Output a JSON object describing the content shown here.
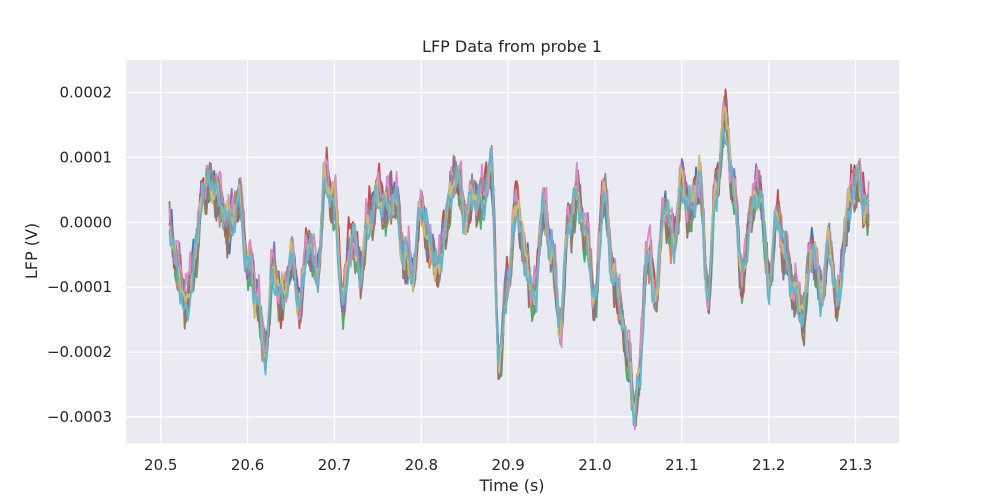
{
  "chart_data": {
    "type": "line",
    "title": "LFP Data from probe 1",
    "xlabel": "Time (s)",
    "ylabel": "LFP (V)",
    "xlim": [
      20.46,
      21.35
    ],
    "ylim": [
      -0.00034,
      0.00025
    ],
    "xticks": [
      20.5,
      20.6,
      20.7,
      20.8,
      20.9,
      21.0,
      21.1,
      21.2,
      21.3
    ],
    "xtick_labels": [
      "20.5",
      "20.6",
      "20.7",
      "20.8",
      "20.9",
      "21.0",
      "21.1",
      "21.2",
      "21.3"
    ],
    "yticks": [
      0.0002,
      0.0001,
      0.0,
      -0.0001,
      -0.0002,
      -0.0003
    ],
    "ytick_labels": [
      "0.0002",
      "0.0001",
      "0.0000",
      "−0.0001",
      "−0.0002",
      "−0.0003"
    ],
    "grid": true,
    "x_start": 20.51,
    "x_end": 21.315,
    "anchors": [
      [
        20.51,
        0.0
      ],
      [
        20.52,
        -8e-05
      ],
      [
        20.53,
        -0.00013
      ],
      [
        20.54,
        -5e-05
      ],
      [
        20.55,
        5e-05
      ],
      [
        20.56,
        6e-05
      ],
      [
        20.57,
        2e-05
      ],
      [
        20.58,
        -1e-05
      ],
      [
        20.59,
        4e-05
      ],
      [
        20.6,
        -6e-05
      ],
      [
        20.61,
        -0.00011
      ],
      [
        20.62,
        -0.0002
      ],
      [
        20.63,
        -7e-05
      ],
      [
        20.64,
        -0.00012
      ],
      [
        20.65,
        -5e-05
      ],
      [
        20.66,
        -0.00013
      ],
      [
        20.67,
        -3e-05
      ],
      [
        20.68,
        -8e-05
      ],
      [
        20.69,
        6e-05
      ],
      [
        20.7,
        2e-05
      ],
      [
        20.71,
        -0.00012
      ],
      [
        20.72,
        -2e-05
      ],
      [
        20.73,
        -7e-05
      ],
      [
        20.74,
        1e-05
      ],
      [
        20.75,
        4e-05
      ],
      [
        20.76,
        2e-05
      ],
      [
        20.77,
        4e-05
      ],
      [
        20.78,
        -5e-05
      ],
      [
        20.79,
        -8e-05
      ],
      [
        20.8,
        2e-05
      ],
      [
        20.81,
        -4e-05
      ],
      [
        20.82,
        -7e-05
      ],
      [
        20.83,
        2e-05
      ],
      [
        20.84,
        8e-05
      ],
      [
        20.85,
        1e-05
      ],
      [
        20.86,
        4e-05
      ],
      [
        20.87,
        3e-05
      ],
      [
        20.88,
        8e-05
      ],
      [
        20.89,
        -0.00021
      ],
      [
        20.9,
        -8e-05
      ],
      [
        20.91,
        3e-05
      ],
      [
        20.92,
        -6e-05
      ],
      [
        20.93,
        -0.00012
      ],
      [
        20.94,
        2e-05
      ],
      [
        20.95,
        -4e-05
      ],
      [
        20.96,
        -0.00016
      ],
      [
        20.97,
        0.0
      ],
      [
        20.98,
        4e-05
      ],
      [
        20.99,
        -2e-05
      ],
      [
        21.0,
        -0.00012
      ],
      [
        21.01,
        5e-05
      ],
      [
        21.02,
        -7e-05
      ],
      [
        21.03,
        -0.00014
      ],
      [
        21.04,
        -0.00022
      ],
      [
        21.045,
        -0.00029
      ],
      [
        21.05,
        -0.00025
      ],
      [
        21.06,
        -5e-05
      ],
      [
        21.07,
        -0.00011
      ],
      [
        21.08,
        2e-05
      ],
      [
        21.09,
        -3e-05
      ],
      [
        21.1,
        6e-05
      ],
      [
        21.11,
        2e-05
      ],
      [
        21.12,
        7e-05
      ],
      [
        21.13,
        -0.00011
      ],
      [
        21.14,
        6e-05
      ],
      [
        21.15,
        0.00016
      ],
      [
        21.16,
        4e-05
      ],
      [
        21.17,
        -9e-05
      ],
      [
        21.18,
        2e-05
      ],
      [
        21.19,
        5e-05
      ],
      [
        21.2,
        -9e-05
      ],
      [
        21.21,
        1e-05
      ],
      [
        21.22,
        -6e-05
      ],
      [
        21.23,
        -0.00011
      ],
      [
        21.24,
        -0.00014
      ],
      [
        21.25,
        -4e-05
      ],
      [
        21.26,
        -0.00011
      ],
      [
        21.27,
        -4e-05
      ],
      [
        21.28,
        -0.00012
      ],
      [
        21.29,
        1e-05
      ],
      [
        21.3,
        7e-05
      ],
      [
        21.31,
        3e-05
      ],
      [
        21.315,
        2e-05
      ]
    ],
    "series": [
      {
        "color": "#4c72b0"
      },
      {
        "color": "#dd8452"
      },
      {
        "color": "#55a868"
      },
      {
        "color": "#c44e52"
      },
      {
        "color": "#8172b3"
      },
      {
        "color": "#937860"
      },
      {
        "color": "#da8bc3"
      },
      {
        "color": "#8c8c8c"
      },
      {
        "color": "#ccb974"
      },
      {
        "color": "#64b5cd"
      }
    ]
  }
}
